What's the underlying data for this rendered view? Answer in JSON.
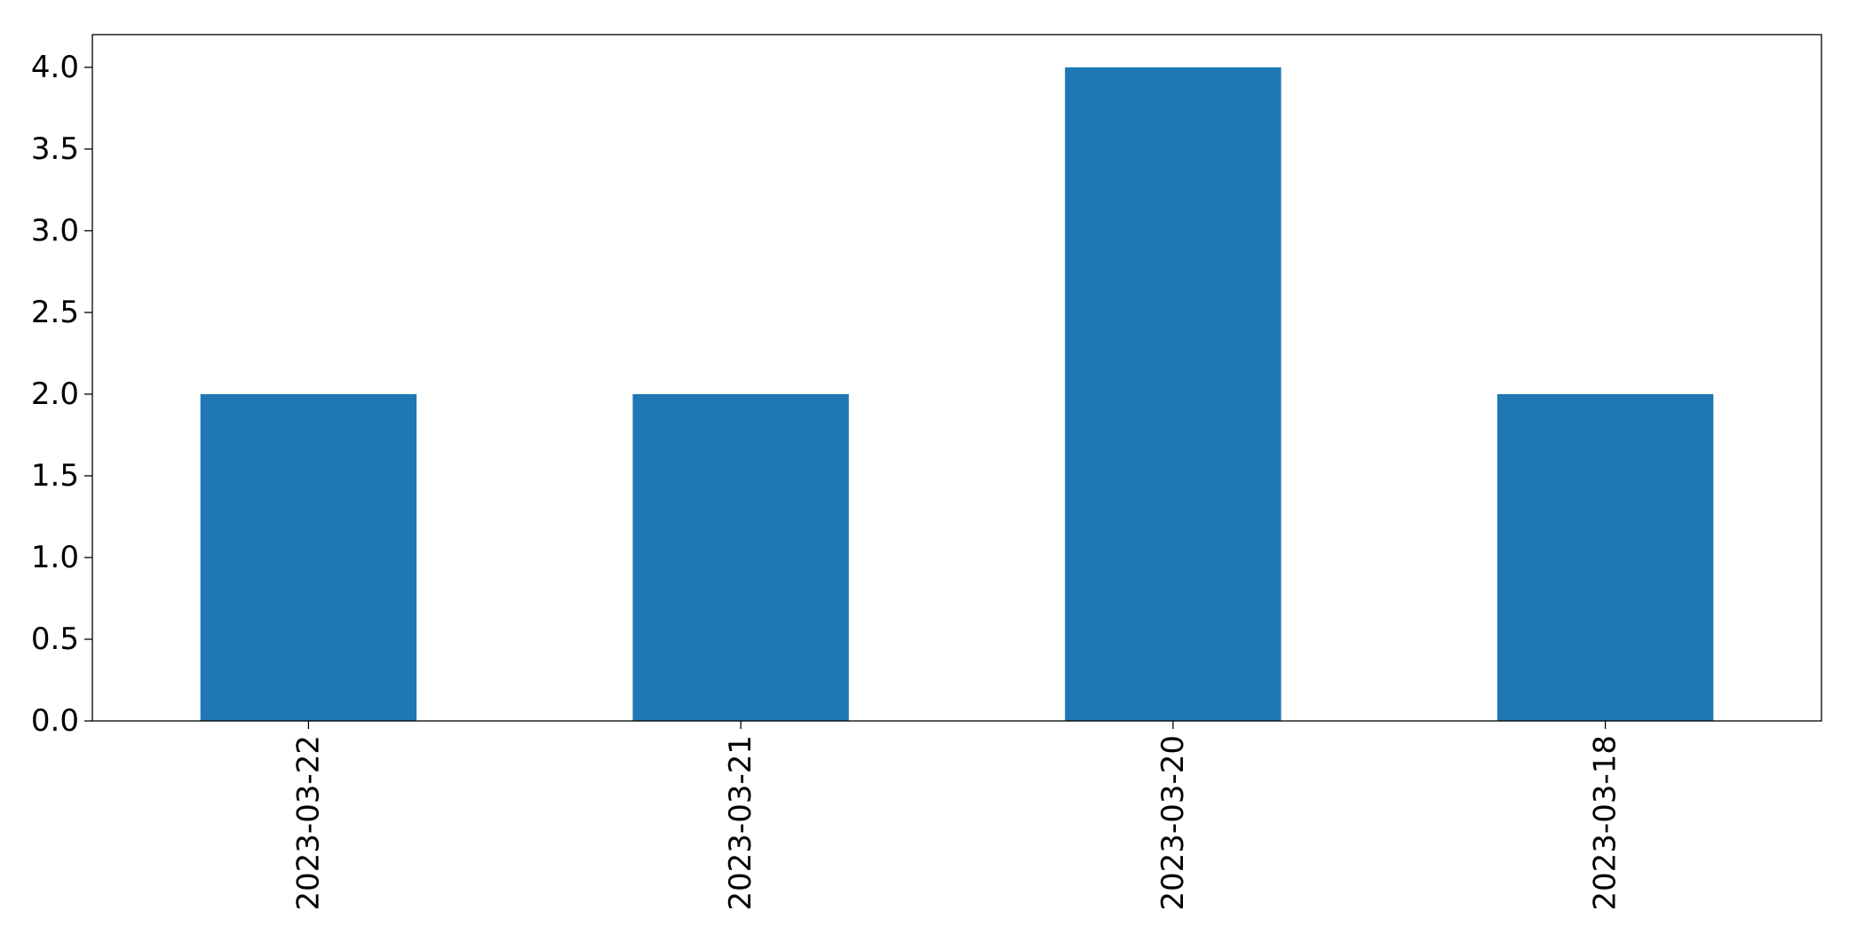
{
  "chart_data": {
    "type": "bar",
    "title": "",
    "xlabel": "",
    "ylabel": "",
    "categories": [
      "2023-03-22",
      "2023-03-21",
      "2023-03-20",
      "2023-03-18"
    ],
    "values": [
      2,
      2,
      4,
      2
    ],
    "ylim": [
      0,
      4.2
    ],
    "yticks": [
      0,
      0.5,
      1,
      1.5,
      2,
      2.5,
      3,
      3.5,
      4
    ],
    "ytick_labels": [
      "0.0",
      "0.5",
      "1.0",
      "1.5",
      "2.0",
      "2.5",
      "3.0",
      "3.5",
      "4.0"
    ],
    "x_tick_rotation": "vertical",
    "grid": false,
    "legend": "none",
    "bar_color": "#1f77b4"
  }
}
